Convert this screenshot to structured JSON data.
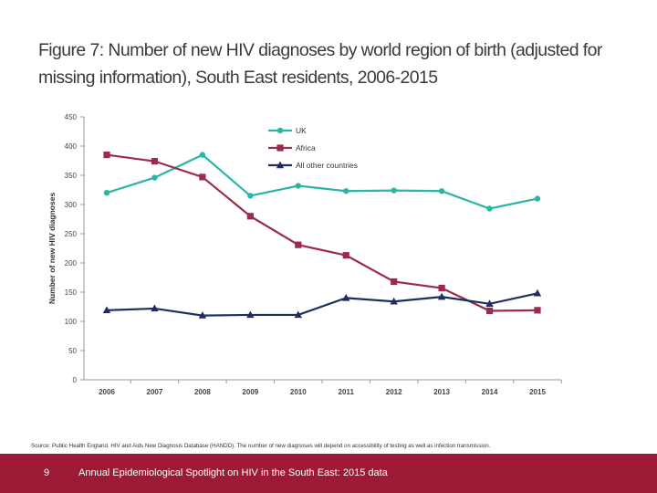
{
  "title": "Figure 7: Number of new HIV diagnoses by world region of birth (adjusted for missing information), South East residents, 2006-2015",
  "source": "Source: Public Health England. HIV and Aids New Diagnosis Database (HANDD). The number of new diagnoses will depend on accessibility of testing as well as infection transmission.",
  "footer": {
    "page_number": "9",
    "text": "Annual Epidemiological Spotlight on HIV in the South East: 2015 data",
    "color": "#9c1a36"
  },
  "chart_data": {
    "type": "line",
    "title": "",
    "xlabel": "",
    "ylabel": "Number of new HIV diagnoses",
    "x": [
      "2006",
      "2007",
      "2008",
      "2009",
      "2010",
      "2011",
      "2012",
      "2013",
      "2014",
      "2015"
    ],
    "ylim": [
      0,
      450
    ],
    "yticks": [
      0,
      50,
      100,
      150,
      200,
      250,
      300,
      350,
      400,
      450
    ],
    "grid": false,
    "legend": "top-center",
    "series": [
      {
        "name": "UK",
        "color": "#2bb5a6",
        "marker": "circle",
        "values": [
          320,
          346,
          385,
          315,
          332,
          323,
          324,
          323,
          293,
          310
        ]
      },
      {
        "name": "Africa",
        "color": "#9c2a4a",
        "marker": "square",
        "values": [
          385,
          374,
          347,
          280,
          231,
          213,
          168,
          157,
          118,
          119
        ]
      },
      {
        "name": "All other countries",
        "color": "#1e2f5e",
        "marker": "triangle",
        "values": [
          119,
          122,
          110,
          111,
          111,
          140,
          134,
          142,
          130,
          148
        ]
      }
    ]
  }
}
